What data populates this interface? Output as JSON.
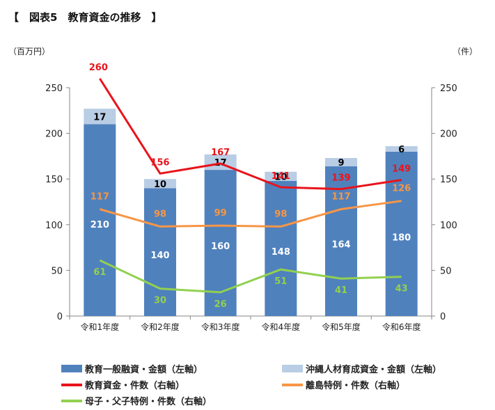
{
  "title": "【　図表5　教育資金の推移　】",
  "chart_data": {
    "type": "bar",
    "categories": [
      "令和1年度",
      "令和2年度",
      "令和3年度",
      "令和4年度",
      "令和5年度",
      "令和6年度"
    ],
    "ylabel_left": "（百万円）",
    "ylabel_right": "（件）",
    "ylim_left": [
      0,
      250
    ],
    "ylim_right": [
      0,
      250
    ],
    "yticks": [
      0,
      50,
      100,
      150,
      200,
      250
    ],
    "grid": false,
    "legend_position": "bottom",
    "bar_series": [
      {
        "name": "教育一般融資・金額（左軸）",
        "values": [
          210,
          140,
          160,
          148,
          164,
          180
        ],
        "color": "#4f81bd",
        "label_color": "#ffffff"
      },
      {
        "name": "沖縄人材育成資金・金額（左軸）",
        "values": [
          17,
          10,
          17,
          10,
          9,
          6
        ],
        "color": "#b9cde5",
        "label_color": "#000000"
      }
    ],
    "line_series": [
      {
        "name": "教育資金・件数（右軸）",
        "values": [
          260,
          156,
          167,
          141,
          139,
          149
        ],
        "color": "#e8141b"
      },
      {
        "name": "離島特例・件数（右軸）",
        "values": [
          117,
          98,
          99,
          98,
          117,
          126
        ],
        "color": "#f79646"
      },
      {
        "name": "母子・父子特例・件数（右軸）",
        "values": [
          61,
          30,
          26,
          51,
          41,
          43
        ],
        "color": "#92d050"
      }
    ]
  }
}
